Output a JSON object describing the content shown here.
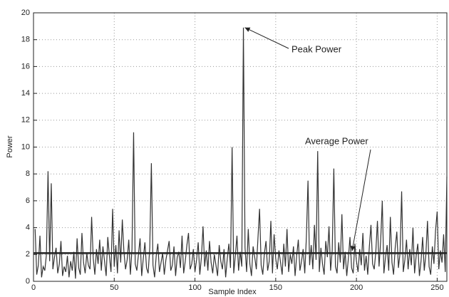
{
  "chart_data": {
    "type": "line",
    "x_label": "Sample Index",
    "y_label": "Power",
    "xlim": [
      0,
      256
    ],
    "ylim": [
      0,
      20
    ],
    "xticks": [
      0,
      50,
      100,
      150,
      200,
      250
    ],
    "yticks": [
      0,
      2,
      4,
      6,
      8,
      10,
      12,
      14,
      16,
      18,
      20
    ],
    "grid": true,
    "color": "#333333",
    "average": 2.1,
    "annotations": [
      {
        "text": "Peak Power"
      },
      {
        "text": "Average Power"
      }
    ],
    "x": [
      1,
      2,
      3,
      4,
      5,
      6,
      7,
      8,
      9,
      10,
      11,
      12,
      13,
      14,
      15,
      16,
      17,
      18,
      19,
      20,
      21,
      22,
      23,
      24,
      25,
      26,
      27,
      28,
      29,
      30,
      31,
      32,
      33,
      34,
      35,
      36,
      37,
      38,
      39,
      40,
      41,
      42,
      43,
      44,
      45,
      46,
      47,
      48,
      49,
      50,
      51,
      52,
      53,
      54,
      55,
      56,
      57,
      58,
      59,
      60,
      61,
      62,
      63,
      64,
      65,
      66,
      67,
      68,
      69,
      70,
      71,
      72,
      73,
      74,
      75,
      76,
      77,
      78,
      79,
      80,
      81,
      82,
      83,
      84,
      85,
      86,
      87,
      88,
      89,
      90,
      91,
      92,
      93,
      94,
      95,
      96,
      97,
      98,
      99,
      100,
      101,
      102,
      103,
      104,
      105,
      106,
      107,
      108,
      109,
      110,
      111,
      112,
      113,
      114,
      115,
      116,
      117,
      118,
      119,
      120,
      121,
      122,
      123,
      124,
      125,
      126,
      127,
      128,
      129,
      130,
      131,
      132,
      133,
      134,
      135,
      136,
      137,
      138,
      139,
      140,
      141,
      142,
      143,
      144,
      145,
      146,
      147,
      148,
      149,
      150,
      151,
      152,
      153,
      154,
      155,
      156,
      157,
      158,
      159,
      160,
      161,
      162,
      163,
      164,
      165,
      166,
      167,
      168,
      169,
      170,
      171,
      172,
      173,
      174,
      175,
      176,
      177,
      178,
      179,
      180,
      181,
      182,
      183,
      184,
      185,
      186,
      187,
      188,
      189,
      190,
      191,
      192,
      193,
      194,
      195,
      196,
      197,
      198,
      199,
      200,
      201,
      202,
      203,
      204,
      205,
      206,
      207,
      208,
      209,
      210,
      211,
      212,
      213,
      214,
      215,
      216,
      217,
      218,
      219,
      220,
      221,
      222,
      223,
      224,
      225,
      226,
      227,
      228,
      229,
      230,
      231,
      232,
      233,
      234,
      235,
      236,
      237,
      238,
      239,
      240,
      241,
      242,
      243,
      244,
      245,
      246,
      247,
      248,
      249,
      250,
      251,
      252,
      253,
      254,
      255,
      256
    ],
    "values": [
      3.9,
      0.5,
      1.2,
      3.4,
      0.3,
      1.1,
      0.8,
      2.0,
      8.2,
      1.5,
      7.3,
      0.9,
      1.8,
      2.5,
      0.6,
      1.3,
      3.0,
      0.4,
      1.1,
      0.7,
      1.9,
      0.3,
      1.5,
      0.8,
      2.2,
      0.2,
      3.2,
      1.0,
      0.5,
      3.6,
      1.4,
      0.6,
      2.1,
      1.2,
      0.9,
      4.8,
      1.7,
      0.5,
      2.4,
      1.3,
      3.1,
      0.8,
      2.6,
      1.5,
      0.4,
      3.3,
      1.9,
      0.7,
      5.4,
      1.1,
      2.7,
      0.6,
      3.8,
      1.4,
      4.6,
      2.2,
      0.9,
      1.6,
      3.1,
      0.5,
      2.4,
      11.1,
      1.3,
      0.8,
      2.0,
      3.2,
      0.4,
      1.7,
      2.9,
      1.0,
      0.6,
      2.5,
      8.8,
      1.2,
      0.3,
      1.9,
      2.8,
      0.7,
      1.4,
      2.1,
      0.5,
      1.6,
      2.3,
      3.0,
      0.8,
      1.2,
      2.6,
      0.4,
      1.8,
      2.2,
      1.0,
      3.4,
      0.6,
      1.5,
      2.7,
      3.6,
      0.9,
      1.3,
      2.4,
      0.7,
      1.6,
      2.9,
      0.5,
      1.8,
      4.1,
      1.1,
      2.3,
      0.8,
      3.0,
      1.4,
      0.6,
      2.0,
      1.2,
      0.4,
      2.7,
      1.5,
      0.9,
      2.4,
      0.3,
      1.7,
      2.8,
      1.0,
      10.0,
      0.6,
      1.9,
      3.4,
      0.8,
      2.2,
      1.1,
      18.9,
      2.5,
      0.7,
      3.9,
      1.3,
      0.4,
      2.6,
      1.8,
      0.9,
      3.2,
      5.4,
      1.2,
      0.5,
      2.1,
      3.0,
      0.8,
      1.5,
      4.5,
      0.6,
      3.5,
      1.7,
      0.9,
      2.3,
      1.4,
      0.5,
      2.8,
      1.1,
      3.9,
      0.7,
      2.0,
      1.3,
      2.6,
      0.4,
      1.9,
      3.1,
      0.8,
      1.5,
      2.4,
      0.6,
      3.3,
      7.5,
      1.2,
      2.7,
      0.9,
      4.2,
      1.6,
      9.7,
      0.7,
      2.5,
      1.3,
      0.5,
      3.0,
      1.8,
      4.1,
      0.8,
      2.3,
      8.4,
      1.1,
      0.6,
      2.9,
      1.4,
      5.0,
      0.9,
      2.2,
      0.4,
      1.7,
      3.3,
      1.0,
      0.6,
      2.8,
      1.5,
      0.7,
      2.4,
      1.2,
      3.6,
      0.8,
      1.9,
      0.5,
      2.6,
      4.2,
      1.3,
      0.9,
      2.2,
      4.5,
      1.1,
      3.0,
      6.0,
      0.6,
      1.8,
      2.7,
      0.8,
      4.8,
      1.4,
      0.5,
      2.5,
      3.7,
      1.0,
      2.1,
      6.7,
      0.7,
      1.6,
      3.1,
      0.9,
      2.4,
      1.2,
      4.0,
      0.6,
      1.9,
      2.8,
      0.4,
      1.5,
      3.3,
      0.8,
      2.0,
      4.5,
      1.1,
      0.5,
      2.6,
      1.3,
      3.8,
      5.2,
      0.9,
      2.3,
      1.4,
      3.5,
      0.7,
      7.8
    ]
  }
}
